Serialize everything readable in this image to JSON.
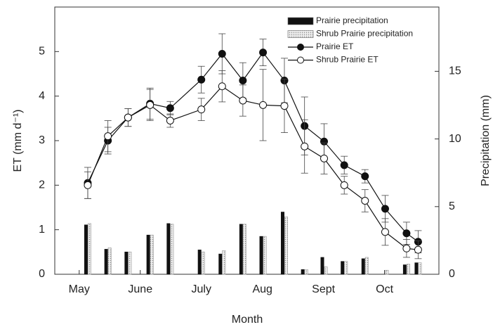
{
  "chart_data": {
    "type": "combo",
    "x_label": "Month",
    "y_label": "ET (mm d⁻¹)",
    "y2_label": "Precipitation (mm)",
    "x": [
      5.14,
      5.47,
      5.8,
      6.16,
      6.49,
      7.0,
      7.34,
      7.68,
      8.01,
      8.36,
      8.69,
      9.01,
      9.34,
      9.68,
      10.01,
      10.36,
      10.55
    ],
    "xlim": [
      4.6,
      10.89
    ],
    "xticks": [
      {
        "value": 5,
        "label": "May"
      },
      {
        "value": 6,
        "label": "June"
      },
      {
        "value": 7,
        "label": "July"
      },
      {
        "value": 8,
        "label": "Aug"
      },
      {
        "value": 9,
        "label": "Sept"
      },
      {
        "value": 10,
        "label": "Oct"
      }
    ],
    "ylim": [
      0,
      6
    ],
    "yticks": [
      0,
      1,
      2,
      3,
      4,
      5
    ],
    "y2lim": [
      0,
      19.75
    ],
    "y2ticks": [
      0,
      5,
      10,
      15
    ],
    "legend": "upper right",
    "series": [
      {
        "name": "Prairie precipitation",
        "type": "bar",
        "axis": "y2",
        "color": "#111111",
        "values": [
          3.65,
          1.85,
          1.65,
          2.9,
          3.75,
          1.8,
          1.5,
          3.7,
          2.8,
          4.6,
          0.35,
          1.25,
          0.95,
          1.15,
          0,
          0.7,
          0.85
        ]
      },
      {
        "name": "Shrub Prairie precipitation",
        "type": "bar",
        "axis": "y2",
        "color": "#cccccc",
        "values": [
          3.75,
          1.95,
          1.65,
          2.9,
          3.7,
          1.65,
          1.75,
          3.7,
          2.8,
          4.25,
          0.35,
          0.55,
          0.95,
          1.25,
          0.3,
          0.75,
          0.85
        ]
      },
      {
        "name": "Prairie ET",
        "type": "line",
        "color": "#111111",
        "marker": "filled",
        "values": [
          2.05,
          3.0,
          3.52,
          3.83,
          3.73,
          4.37,
          4.95,
          4.35,
          4.98,
          4.35,
          3.33,
          2.98,
          2.45,
          2.2,
          1.47,
          0.92,
          0.73
        ],
        "errors": [
          0.35,
          0.3,
          0.2,
          0.35,
          0.15,
          0.3,
          0.45,
          0.4,
          0.3,
          0.5,
          0.65,
          0.4,
          0.2,
          0.15,
          0.3,
          0.25,
          0.25
        ]
      },
      {
        "name": "Shrub Prairie ET",
        "type": "line",
        "color": "#111111",
        "marker": "open",
        "values": [
          2.0,
          3.1,
          3.52,
          3.8,
          3.45,
          3.7,
          4.22,
          3.9,
          3.8,
          3.78,
          2.87,
          2.6,
          2.0,
          1.65,
          0.95,
          0.58,
          0.55
        ],
        "errors": [
          0.3,
          0.35,
          0.2,
          0.35,
          0.15,
          0.25,
          0.35,
          0.35,
          0.8,
          0.6,
          0.6,
          0.35,
          0.2,
          0.25,
          0.3,
          0.2,
          0.2
        ]
      }
    ]
  }
}
